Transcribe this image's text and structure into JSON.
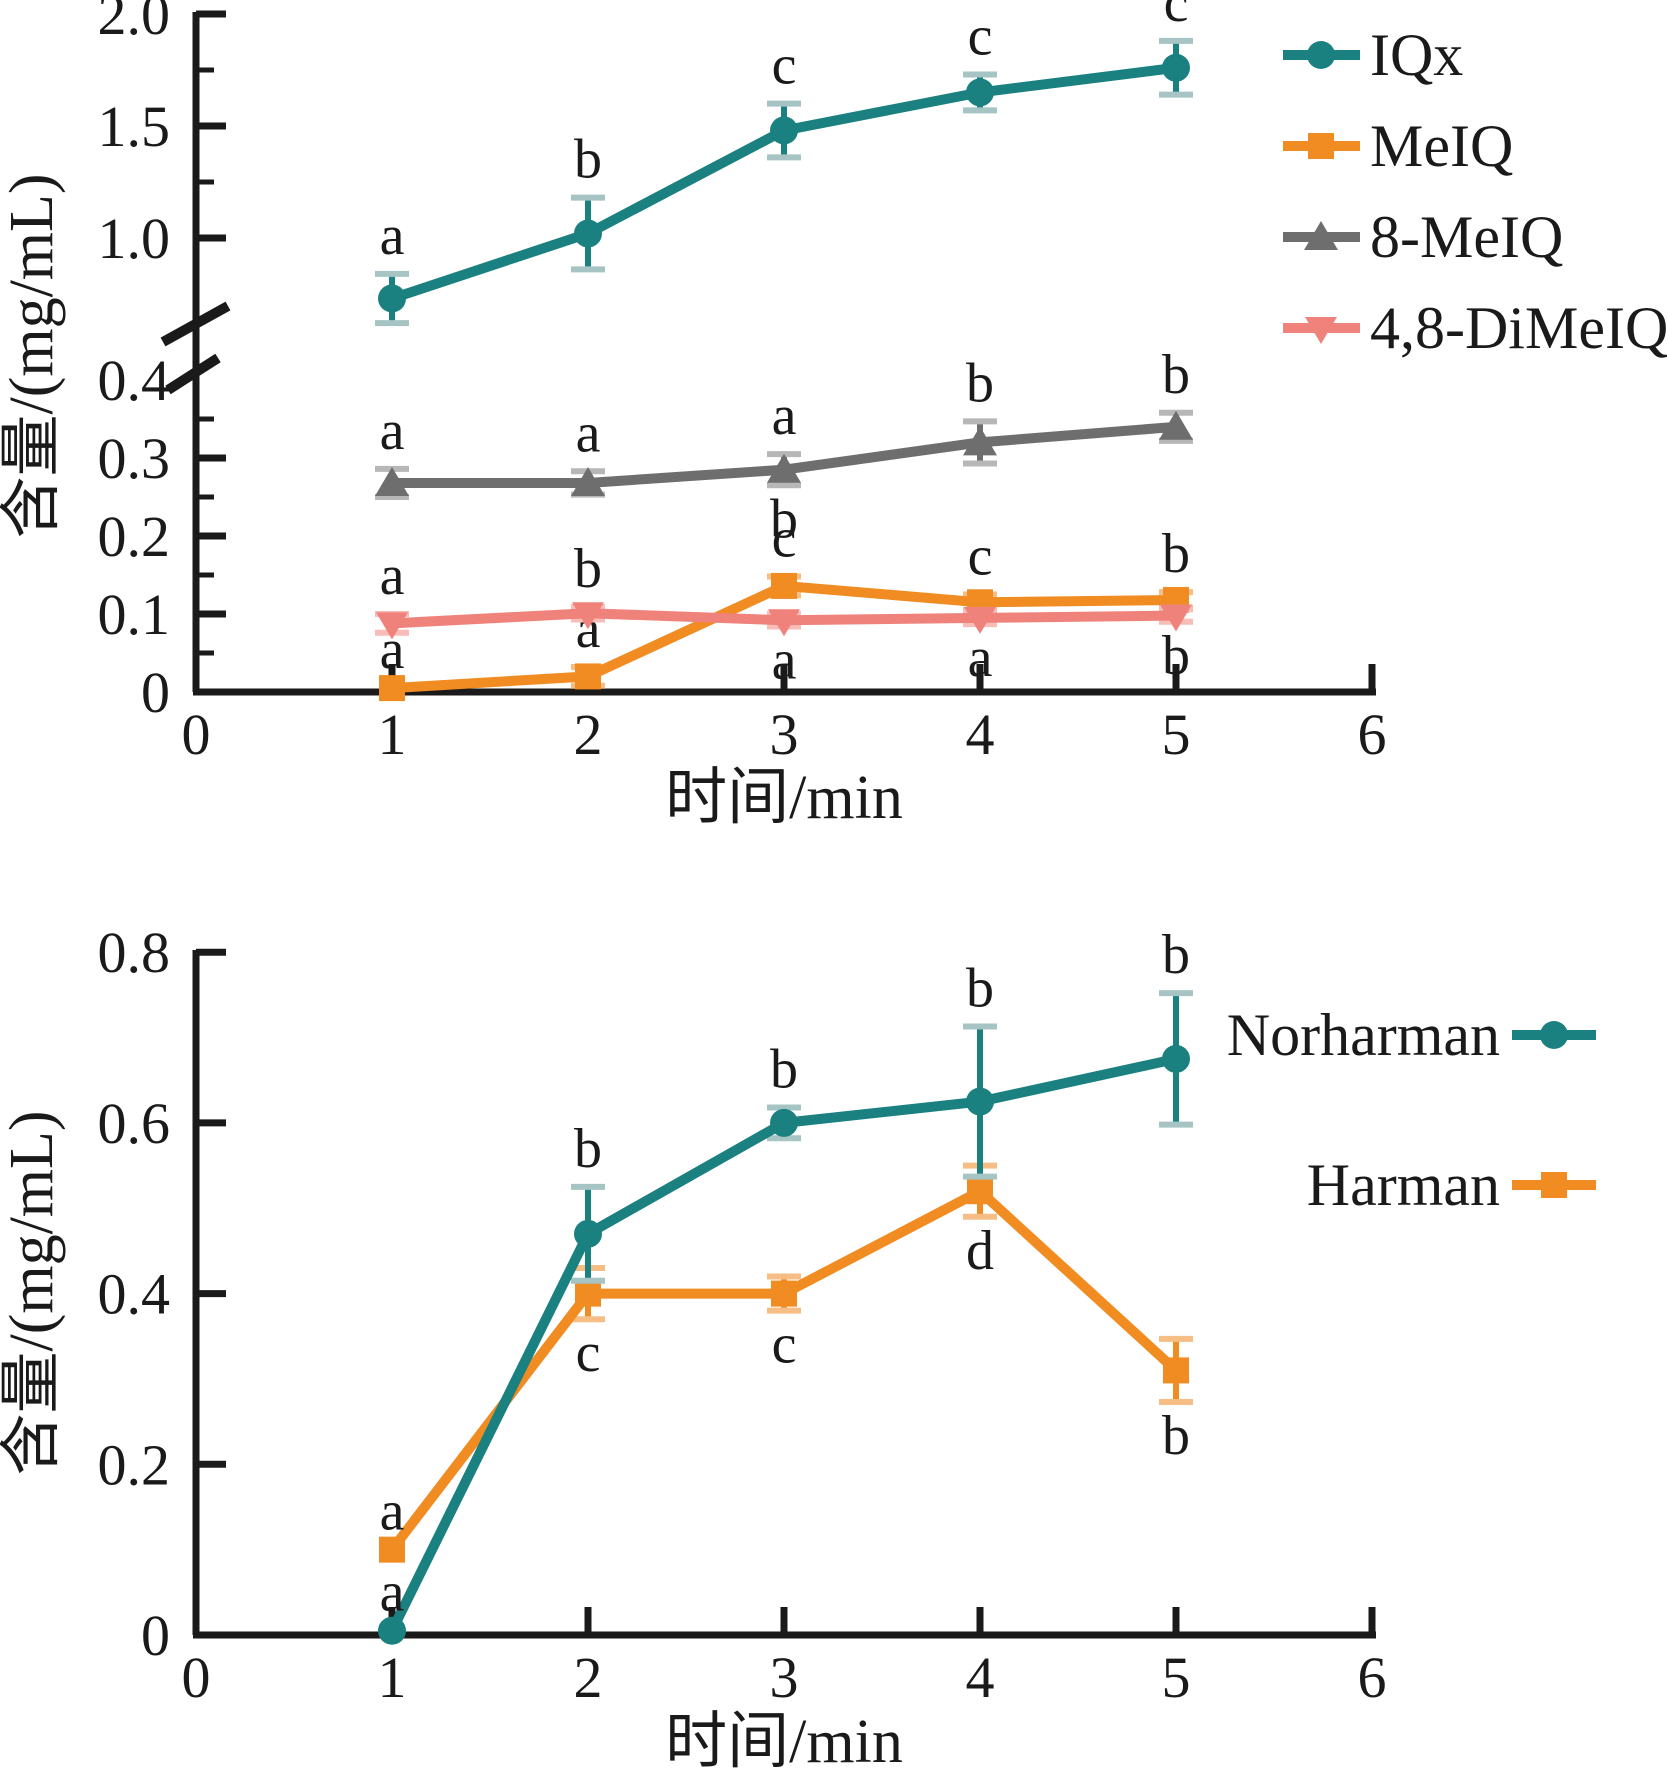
{
  "figure": {
    "background": "#ffffff",
    "text_color": "#1a1a1a",
    "axis_color": "#1a1a1a"
  },
  "chart_data": [
    {
      "type": "line",
      "panel": "top",
      "title": "",
      "xlabel": "时间/min",
      "ylabel": "含量/(mg/mL)",
      "x": [
        1,
        2,
        3,
        4,
        5
      ],
      "xlim": [
        0,
        6
      ],
      "x_ticks": [
        "0",
        "1",
        "2",
        "3",
        "4",
        "5",
        "6"
      ],
      "y_axis_break": {
        "lower_ylim": [
          0,
          0.43
        ],
        "upper_ylim": [
          0.55,
          2.05
        ],
        "lower_tick_labels": [
          {
            "v": 0,
            "label": "0"
          },
          {
            "v": 0.1,
            "label": "0.1"
          },
          {
            "v": 0.2,
            "label": "0.2"
          },
          {
            "v": 0.3,
            "label": "0.3"
          },
          {
            "v": 0.4,
            "label": "0.4"
          }
        ],
        "lower_minor_ticks": [
          0.05,
          0.15,
          0.25,
          0.35
        ],
        "upper_tick_labels": [
          {
            "v": 1.0,
            "label": "1.0"
          },
          {
            "v": 1.5,
            "label": "1.5"
          },
          {
            "v": 2.0,
            "label": "2.0"
          }
        ],
        "upper_minor_ticks": [
          1.25,
          1.75
        ]
      },
      "grid": false,
      "legend_position": "top-right-outside-markers-left",
      "series": [
        {
          "name": "8-MeIQ",
          "marker": "triangle-up",
          "color": "#6e6e6e",
          "cap_color": "#b7b7b7",
          "values": [
            0.268,
            0.268,
            0.285,
            0.32,
            0.34
          ],
          "errors": [
            0.018,
            0.015,
            0.02,
            0.027,
            0.018
          ],
          "letters": [
            {
              "above": "a"
            },
            {
              "above": "a"
            },
            {
              "above": "a",
              "below": "b"
            },
            {
              "above": "b"
            },
            {
              "above": "b"
            }
          ]
        },
        {
          "name": "MeIQ",
          "marker": "square",
          "color": "#f08c21",
          "cap_color": "#f6bd85",
          "values": [
            0.005,
            0.02,
            0.136,
            0.115,
            0.118
          ],
          "errors": [
            0,
            0.012,
            0.012,
            0.01,
            0.01
          ],
          "letters": [
            {
              "above": "a"
            },
            {
              "above": "a"
            },
            {
              "above": "c"
            },
            {
              "above": "c"
            },
            {
              "above": "b"
            }
          ]
        },
        {
          "name": "4,8-DiMeIQ",
          "marker": "triangle-down",
          "color": "#ef837b",
          "cap_color": "#f7bdb6",
          "values": [
            0.088,
            0.101,
            0.092,
            0.095,
            0.098
          ],
          "errors": [
            0.012,
            0.008,
            0.008,
            0.008,
            0.008
          ],
          "letters": [
            {
              "above": "a"
            },
            {
              "above": "b"
            },
            {
              "below": "a"
            },
            {
              "below": "a"
            },
            {
              "below": "b"
            }
          ]
        },
        {
          "name": "IQx",
          "marker": "circle",
          "color": "#1a8080",
          "cap_color": "#a5c4c3",
          "values": [
            0.73,
            1.02,
            1.48,
            1.65,
            1.76
          ],
          "errors": [
            0.11,
            0.16,
            0.12,
            0.08,
            0.12
          ],
          "letters": [
            {
              "above": "a"
            },
            {
              "above": "b"
            },
            {
              "above": "c"
            },
            {
              "above": "c"
            },
            {
              "above": "c"
            }
          ]
        }
      ],
      "legend_order": [
        "IQx",
        "MeIQ",
        "8-MeIQ",
        "4,8-DiMeIQ"
      ]
    },
    {
      "type": "line",
      "panel": "bottom",
      "title": "",
      "xlabel": "时间/min",
      "ylabel": "含量/(mg/mL)",
      "x": [
        1,
        2,
        3,
        4,
        5
      ],
      "xlim": [
        0,
        6
      ],
      "x_ticks": [
        "0",
        "1",
        "2",
        "3",
        "4",
        "5",
        "6"
      ],
      "ylim": [
        0,
        0.8
      ],
      "y_tick_labels": [
        {
          "v": 0,
          "label": "0"
        },
        {
          "v": 0.2,
          "label": "0.2"
        },
        {
          "v": 0.4,
          "label": "0.4"
        },
        {
          "v": 0.6,
          "label": "0.6"
        },
        {
          "v": 0.8,
          "label": "0.8"
        }
      ],
      "grid": false,
      "legend_position": "top-right-inside-markers-right",
      "series": [
        {
          "name": "Harman",
          "marker": "square",
          "color": "#f08c21",
          "cap_color": "#f6bd85",
          "values": [
            0.1,
            0.4,
            0.4,
            0.52,
            0.31
          ],
          "errors": [
            0,
            0.03,
            0.02,
            0.03,
            0.037
          ],
          "letters": [
            {
              "above": "a"
            },
            {
              "below": "c"
            },
            {
              "below": "c"
            },
            {
              "below": "d"
            },
            {
              "below": "b"
            }
          ]
        },
        {
          "name": "Norharman",
          "marker": "circle",
          "color": "#1a8080",
          "cap_color": "#a5c4c3",
          "values": [
            0.005,
            0.47,
            0.6,
            0.625,
            0.675
          ],
          "errors": [
            0,
            0.055,
            0.018,
            0.088,
            0.077
          ],
          "letters": [
            {
              "above": "a"
            },
            {
              "above": "b"
            },
            {
              "above": "b"
            },
            {
              "above": "b"
            },
            {
              "above": "b"
            }
          ]
        }
      ],
      "legend_order": [
        "Norharman",
        "Harman"
      ]
    }
  ]
}
